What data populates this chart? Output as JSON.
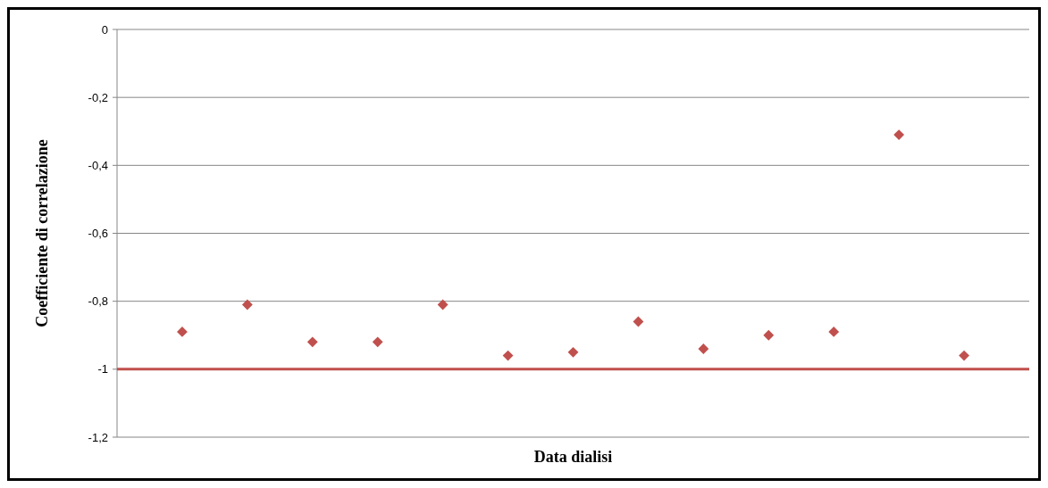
{
  "chart_data": {
    "type": "scatter",
    "xlabel": "Data dialisi",
    "ylabel": "Coefficiente di correlazione",
    "categories": [
      null,
      null,
      null,
      null,
      null,
      null,
      null,
      null,
      null,
      null,
      null,
      null,
      null
    ],
    "series": [
      {
        "color": "#c0504d",
        "values": [
          -0.89,
          -0.81,
          -0.92,
          -0.92,
          -0.81,
          -0.96,
          -0.95,
          -0.86,
          -0.94,
          -0.9,
          -0.89,
          -0.31,
          -0.96
        ]
      }
    ],
    "ylim": [
      -1.2,
      0
    ],
    "yticks": [
      {
        "value": -1.2,
        "label": "-1,2"
      },
      -1,
      {
        "value": -0.8,
        "label": "-0,8"
      },
      {
        "value": -0.6,
        "label": "-0,6"
      },
      {
        "value": -0.4,
        "label": "-0,4"
      },
      {
        "value": -0.2,
        "label": "-0,2"
      },
      0
    ],
    "ref_lines": [
      {
        "axis": "y",
        "value": -1,
        "color": "#c0504d"
      }
    ],
    "grid": "y",
    "marker": "diamond"
  }
}
